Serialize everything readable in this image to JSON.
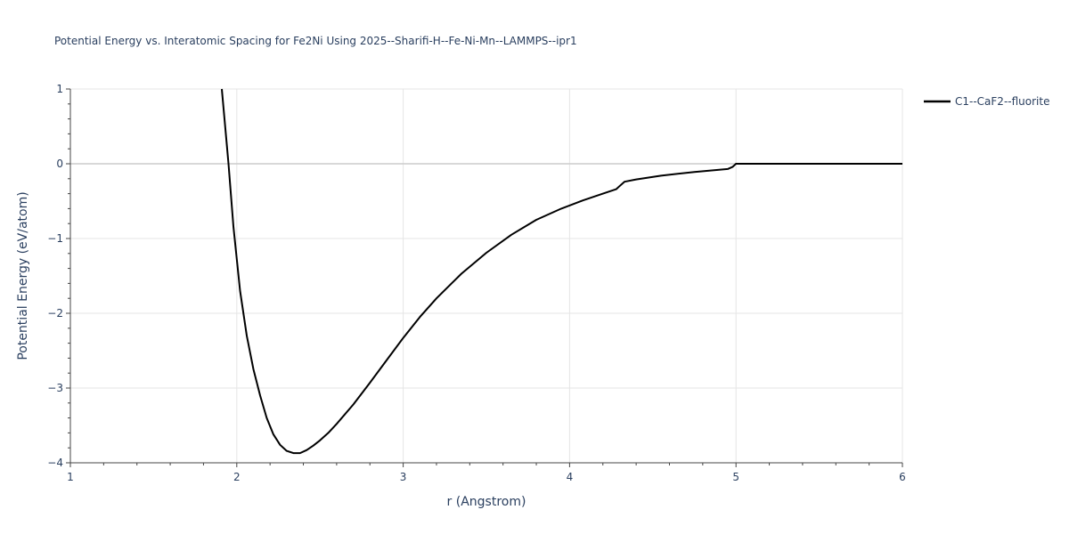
{
  "chart_data": {
    "type": "line",
    "title": "Potential Energy vs. Interatomic Spacing for Fe2Ni Using 2025--Sharifi-H--Fe-Ni-Mn--LAMMPS--ipr1",
    "xlabel": "r (Angstrom)",
    "ylabel": "Potential Energy (eV/atom)",
    "xlim": [
      1,
      6
    ],
    "ylim": [
      -4,
      1
    ],
    "x_ticks": [
      1,
      2,
      3,
      4,
      5,
      6
    ],
    "x_tick_labels": [
      "1",
      "2",
      "3",
      "4",
      "5",
      "6"
    ],
    "y_ticks": [
      1,
      0,
      -1,
      -2,
      -3,
      -4
    ],
    "y_tick_labels": [
      "1",
      "0",
      "−1",
      "−2",
      "−3",
      "−4"
    ],
    "grid": true,
    "legend_position": "top-right",
    "series": [
      {
        "name": "C1--CaF2--fluorite",
        "color": "#000000",
        "x": [
          1.91,
          1.95,
          1.98,
          2.02,
          2.06,
          2.1,
          2.14,
          2.18,
          2.22,
          2.26,
          2.3,
          2.34,
          2.38,
          2.42,
          2.46,
          2.5,
          2.55,
          2.6,
          2.7,
          2.8,
          2.9,
          3.0,
          3.1,
          3.2,
          3.35,
          3.5,
          3.65,
          3.8,
          3.95,
          4.08,
          4.2,
          4.28,
          4.3,
          4.33,
          4.4,
          4.55,
          4.75,
          4.95,
          4.98,
          5.0,
          5.5,
          6.0
        ],
        "y": [
          1.0,
          0.0,
          -0.85,
          -1.7,
          -2.3,
          -2.75,
          -3.1,
          -3.4,
          -3.62,
          -3.76,
          -3.84,
          -3.87,
          -3.87,
          -3.83,
          -3.77,
          -3.7,
          -3.6,
          -3.48,
          -3.22,
          -2.93,
          -2.63,
          -2.33,
          -2.05,
          -1.8,
          -1.47,
          -1.19,
          -0.95,
          -0.75,
          -0.6,
          -0.49,
          -0.4,
          -0.34,
          -0.3,
          -0.24,
          -0.21,
          -0.16,
          -0.11,
          -0.07,
          -0.04,
          0.0,
          0.0,
          0.0
        ]
      }
    ]
  }
}
